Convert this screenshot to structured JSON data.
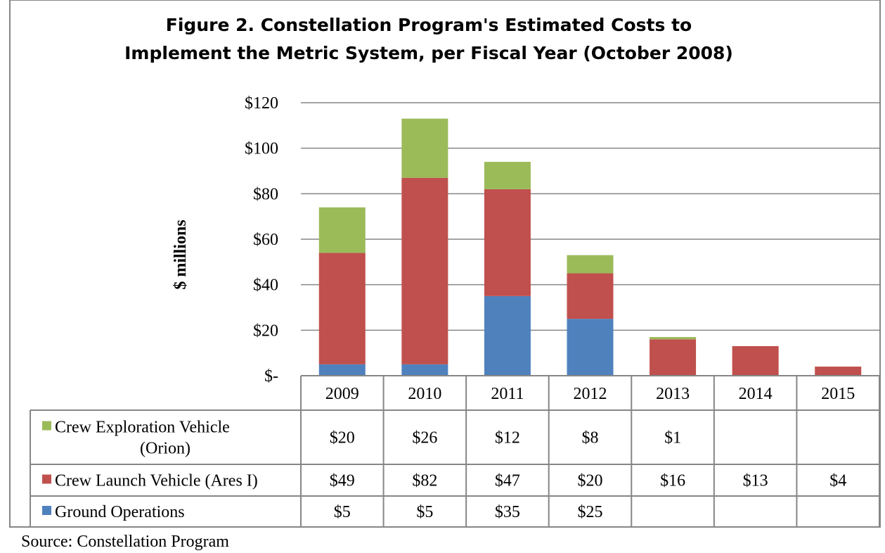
{
  "chart_data": {
    "type": "bar",
    "stacked": true,
    "title": [
      "Figure 2.  Constellation Program's Estimated Costs to",
      "Implement the Metric System, per Fiscal Year (October 2008)"
    ],
    "ylabel": "$ millions",
    "ylim": [
      0,
      120
    ],
    "yticks": [
      0,
      20,
      40,
      60,
      80,
      100,
      120
    ],
    "ytick_labels": [
      "$-",
      "$20",
      "$40",
      "$60",
      "$80",
      "$100",
      "$120"
    ],
    "grid": true,
    "legend": "data-table-left",
    "categories": [
      "2009",
      "2010",
      "2011",
      "2012",
      "2013",
      "2014",
      "2015"
    ],
    "series": [
      {
        "name": "Crew Exploration Vehicle (Orion)",
        "name_lines": [
          "Crew Exploration Vehicle",
          "(Orion)"
        ],
        "color": "#9BBB59",
        "values": [
          20,
          26,
          12,
          8,
          1,
          null,
          null
        ],
        "labels": [
          "$20",
          "$26",
          "$12",
          "$8",
          "$1",
          "",
          ""
        ]
      },
      {
        "name": "Crew Launch Vehicle (Ares I)",
        "name_lines": [
          "Crew Launch Vehicle (Ares I)"
        ],
        "color": "#C0504D",
        "values": [
          49,
          82,
          47,
          20,
          16,
          13,
          4
        ],
        "labels": [
          "$49",
          "$82",
          "$47",
          "$20",
          "$16",
          "$13",
          "$4"
        ]
      },
      {
        "name": "Ground Operations",
        "name_lines": [
          "Ground Operations"
        ],
        "color": "#4F81BD",
        "values": [
          5,
          5,
          35,
          25,
          null,
          null,
          null
        ],
        "labels": [
          "$5",
          "$5",
          "$35",
          "$25",
          "",
          "",
          ""
        ]
      }
    ],
    "source": "Source:  Constellation Program"
  }
}
